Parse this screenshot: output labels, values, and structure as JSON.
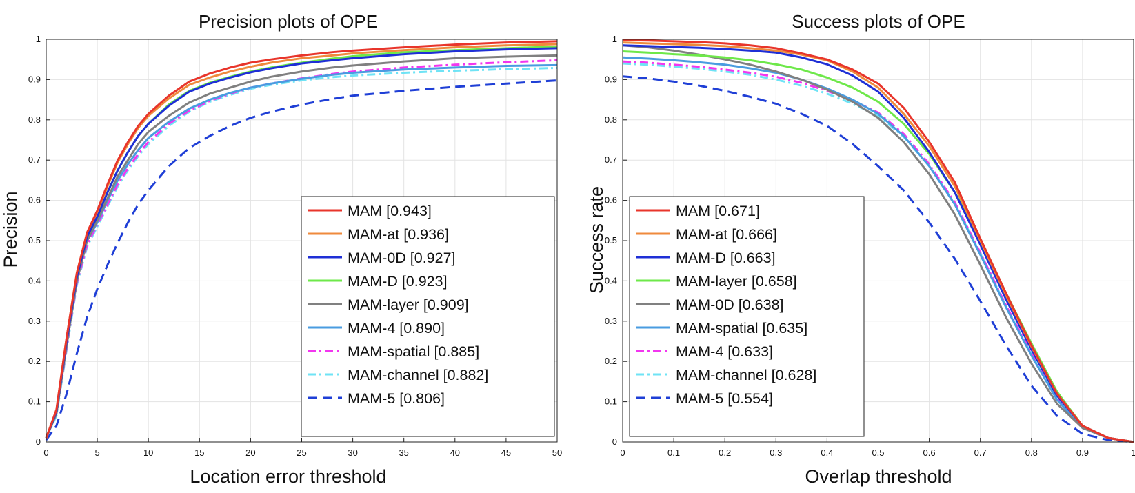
{
  "colors": {
    "MAM": "#e8352b",
    "MAM-at": "#ef8a3c",
    "MAM-0D": "#1f2fd6",
    "MAM-D": "#6ee84a",
    "MAM-layer": "#808080",
    "MAM-4": "#4a9ce0",
    "MAM-spatial": "#f236ef",
    "MAM-channel": "#6fe3f5",
    "MAM-5": "#1f3fd6"
  },
  "chart_data": [
    {
      "type": "line",
      "title": "Precision plots of OPE",
      "xlabel": "Location error threshold",
      "ylabel": "Precision",
      "xlim": [
        0,
        50
      ],
      "ylim": [
        0,
        1
      ],
      "xticks": [
        "0",
        "5",
        "10",
        "15",
        "20",
        "25",
        "30",
        "35",
        "40",
        "45",
        "50"
      ],
      "yticks": [
        "0",
        "0.1",
        "0.2",
        "0.3",
        "0.4",
        "0.5",
        "0.6",
        "0.7",
        "0.8",
        "0.9",
        "1"
      ],
      "grid": true,
      "legend_position": "bottom-right",
      "x": [
        0,
        1,
        2,
        3,
        4,
        5,
        6,
        7,
        8,
        9,
        10,
        12,
        14,
        16,
        18,
        20,
        22,
        25,
        28,
        30,
        35,
        40,
        45,
        50
      ],
      "series": [
        {
          "name": "MAM",
          "legend": "MAM [0.943]",
          "color_key": "MAM",
          "dash": "solid",
          "values": [
            0.01,
            0.08,
            0.26,
            0.42,
            0.52,
            0.575,
            0.64,
            0.7,
            0.745,
            0.785,
            0.815,
            0.86,
            0.895,
            0.915,
            0.93,
            0.942,
            0.95,
            0.96,
            0.968,
            0.972,
            0.98,
            0.987,
            0.992,
            0.995
          ]
        },
        {
          "name": "MAM-at",
          "legend": "MAM-at [0.936]",
          "color_key": "MAM-at",
          "dash": "solid",
          "values": [
            0.01,
            0.08,
            0.26,
            0.42,
            0.52,
            0.572,
            0.635,
            0.695,
            0.74,
            0.78,
            0.81,
            0.853,
            0.887,
            0.905,
            0.92,
            0.932,
            0.942,
            0.953,
            0.96,
            0.965,
            0.973,
            0.98,
            0.985,
            0.988
          ]
        },
        {
          "name": "MAM-0D",
          "legend": "MAM-0D [0.927]",
          "color_key": "MAM-0D",
          "dash": "solid",
          "values": [
            0.01,
            0.075,
            0.25,
            0.41,
            0.51,
            0.56,
            0.62,
            0.675,
            0.72,
            0.76,
            0.79,
            0.835,
            0.87,
            0.89,
            0.905,
            0.918,
            0.928,
            0.94,
            0.948,
            0.953,
            0.963,
            0.97,
            0.975,
            0.978
          ]
        },
        {
          "name": "MAM-D",
          "legend": "MAM-D [0.923]",
          "color_key": "MAM-D",
          "dash": "solid",
          "values": [
            0.01,
            0.075,
            0.25,
            0.41,
            0.51,
            0.56,
            0.62,
            0.675,
            0.72,
            0.76,
            0.79,
            0.838,
            0.872,
            0.892,
            0.907,
            0.92,
            0.93,
            0.942,
            0.952,
            0.958,
            0.968,
            0.973,
            0.978,
            0.982
          ]
        },
        {
          "name": "MAM-layer",
          "legend": "MAM-layer [0.909]",
          "color_key": "MAM-layer",
          "dash": "solid",
          "values": [
            0.01,
            0.07,
            0.24,
            0.4,
            0.5,
            0.55,
            0.605,
            0.66,
            0.7,
            0.74,
            0.77,
            0.81,
            0.843,
            0.865,
            0.88,
            0.895,
            0.907,
            0.92,
            0.93,
            0.935,
            0.945,
            0.953,
            0.957,
            0.96
          ]
        },
        {
          "name": "MAM-4",
          "legend": "MAM-4 [0.890]",
          "color_key": "MAM-4",
          "dash": "solid",
          "values": [
            0.01,
            0.07,
            0.24,
            0.4,
            0.5,
            0.545,
            0.6,
            0.65,
            0.69,
            0.725,
            0.755,
            0.795,
            0.828,
            0.85,
            0.867,
            0.88,
            0.89,
            0.902,
            0.912,
            0.917,
            0.925,
            0.93,
            0.934,
            0.936
          ]
        },
        {
          "name": "MAM-spatial",
          "legend": "MAM-spatial [0.885]",
          "color_key": "MAM-spatial",
          "dash": "dashdot",
          "values": [
            0.01,
            0.07,
            0.235,
            0.395,
            0.49,
            0.54,
            0.59,
            0.64,
            0.68,
            0.715,
            0.745,
            0.79,
            0.823,
            0.847,
            0.865,
            0.88,
            0.89,
            0.903,
            0.914,
            0.92,
            0.93,
            0.937,
            0.943,
            0.948
          ]
        },
        {
          "name": "MAM-channel",
          "legend": "MAM-channel [0.882]",
          "color_key": "MAM-channel",
          "dash": "dashdot",
          "values": [
            0.01,
            0.065,
            0.23,
            0.39,
            0.485,
            0.535,
            0.585,
            0.635,
            0.675,
            0.71,
            0.74,
            0.785,
            0.82,
            0.845,
            0.862,
            0.877,
            0.887,
            0.898,
            0.906,
            0.91,
            0.917,
            0.922,
            0.926,
            0.929
          ]
        },
        {
          "name": "MAM-5",
          "legend": "MAM-5 [0.806]",
          "color_key": "MAM-5",
          "dash": "dash",
          "values": [
            0.005,
            0.04,
            0.12,
            0.22,
            0.31,
            0.38,
            0.44,
            0.495,
            0.545,
            0.59,
            0.625,
            0.685,
            0.73,
            0.76,
            0.785,
            0.805,
            0.82,
            0.838,
            0.852,
            0.86,
            0.872,
            0.882,
            0.89,
            0.898
          ]
        }
      ]
    },
    {
      "type": "line",
      "title": "Success plots of OPE",
      "xlabel": "Overlap threshold",
      "ylabel": "Success rate",
      "xlim": [
        0,
        1
      ],
      "ylim": [
        0,
        1
      ],
      "xticks": [
        "0",
        "0.1",
        "0.2",
        "0.3",
        "0.4",
        "0.5",
        "0.6",
        "0.7",
        "0.8",
        "0.9",
        "1"
      ],
      "yticks": [
        "0",
        "0.1",
        "0.2",
        "0.3",
        "0.4",
        "0.5",
        "0.6",
        "0.7",
        "0.8",
        "0.9",
        "1"
      ],
      "grid": true,
      "legend_position": "bottom-left",
      "x": [
        0,
        0.05,
        0.1,
        0.15,
        0.2,
        0.25,
        0.3,
        0.35,
        0.4,
        0.45,
        0.5,
        0.55,
        0.6,
        0.65,
        0.7,
        0.75,
        0.8,
        0.85,
        0.9,
        0.95,
        1.0
      ],
      "series": [
        {
          "name": "MAM",
          "legend": "MAM [0.671]",
          "color_key": "MAM",
          "dash": "solid",
          "values": [
            0.998,
            0.997,
            0.995,
            0.993,
            0.99,
            0.985,
            0.978,
            0.965,
            0.95,
            0.925,
            0.89,
            0.83,
            0.745,
            0.645,
            0.505,
            0.37,
            0.24,
            0.12,
            0.04,
            0.01,
            0.0
          ]
        },
        {
          "name": "MAM-at",
          "legend": "MAM-at [0.666]",
          "color_key": "MAM-at",
          "dash": "solid",
          "values": [
            0.992,
            0.99,
            0.988,
            0.986,
            0.983,
            0.978,
            0.972,
            0.962,
            0.948,
            0.92,
            0.88,
            0.815,
            0.735,
            0.635,
            0.5,
            0.365,
            0.237,
            0.12,
            0.04,
            0.01,
            0.0
          ]
        },
        {
          "name": "MAM-D",
          "legend": "MAM-D [0.663]",
          "color_key": "MAM-0D",
          "dash": "solid",
          "values": [
            0.985,
            0.983,
            0.981,
            0.979,
            0.976,
            0.972,
            0.967,
            0.955,
            0.938,
            0.91,
            0.87,
            0.805,
            0.72,
            0.62,
            0.49,
            0.355,
            0.23,
            0.115,
            0.04,
            0.01,
            0.0
          ]
        },
        {
          "name": "MAM-layer",
          "legend": "MAM-layer [0.658]",
          "color_key": "MAM-D",
          "dash": "solid",
          "values": [
            0.97,
            0.967,
            0.963,
            0.96,
            0.955,
            0.948,
            0.938,
            0.925,
            0.905,
            0.88,
            0.845,
            0.79,
            0.715,
            0.62,
            0.505,
            0.37,
            0.245,
            0.125,
            0.04,
            0.01,
            0.0
          ]
        },
        {
          "name": "MAM-0D",
          "legend": "MAM-0D [0.638]",
          "color_key": "MAM-layer",
          "dash": "solid",
          "values": [
            0.985,
            0.98,
            0.972,
            0.962,
            0.95,
            0.937,
            0.92,
            0.9,
            0.875,
            0.845,
            0.805,
            0.745,
            0.665,
            0.565,
            0.44,
            0.31,
            0.195,
            0.095,
            0.035,
            0.01,
            0.0
          ]
        },
        {
          "name": "MAM-spatial",
          "legend": "MAM-spatial [0.635]",
          "color_key": "MAM-4",
          "dash": "solid",
          "values": [
            0.955,
            0.952,
            0.948,
            0.943,
            0.937,
            0.928,
            0.917,
            0.9,
            0.878,
            0.85,
            0.815,
            0.76,
            0.685,
            0.59,
            0.465,
            0.335,
            0.215,
            0.105,
            0.035,
            0.01,
            0.0
          ]
        },
        {
          "name": "MAM-4",
          "legend": "MAM-4 [0.633]",
          "color_key": "MAM-spatial",
          "dash": "dashdot",
          "values": [
            0.945,
            0.942,
            0.937,
            0.932,
            0.925,
            0.917,
            0.907,
            0.892,
            0.872,
            0.848,
            0.818,
            0.765,
            0.69,
            0.595,
            0.47,
            0.34,
            0.22,
            0.11,
            0.035,
            0.01,
            0.0
          ]
        },
        {
          "name": "MAM-channel",
          "legend": "MAM-channel [0.628]",
          "color_key": "MAM-channel",
          "dash": "dashdot",
          "values": [
            0.94,
            0.937,
            0.932,
            0.927,
            0.92,
            0.912,
            0.9,
            0.885,
            0.865,
            0.84,
            0.81,
            0.758,
            0.685,
            0.592,
            0.468,
            0.338,
            0.218,
            0.108,
            0.035,
            0.01,
            0.0
          ]
        },
        {
          "name": "MAM-5",
          "legend": "MAM-5 [0.554]",
          "color_key": "MAM-5",
          "dash": "dash",
          "values": [
            0.908,
            0.903,
            0.895,
            0.885,
            0.872,
            0.857,
            0.84,
            0.815,
            0.785,
            0.74,
            0.685,
            0.625,
            0.545,
            0.455,
            0.35,
            0.24,
            0.14,
            0.065,
            0.02,
            0.005,
            0.0
          ]
        }
      ]
    }
  ]
}
